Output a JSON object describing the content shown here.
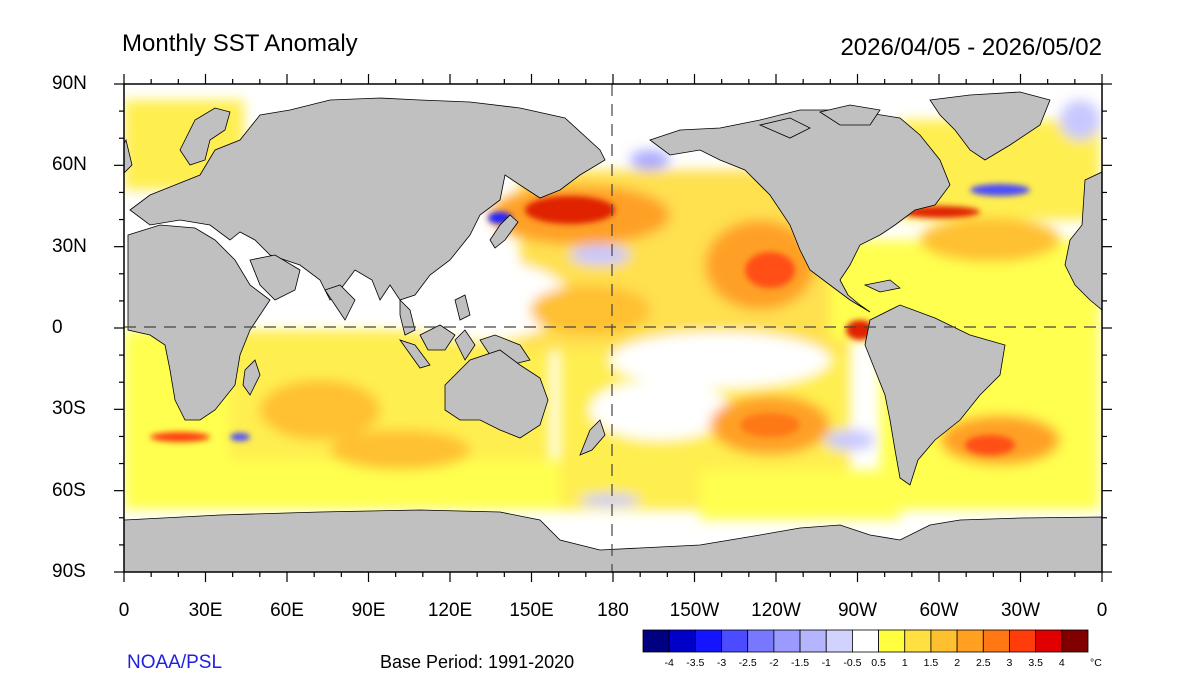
{
  "title": "Monthly SST Anomaly",
  "period": "2026/04/05 - 2026/05/02",
  "credit": "NOAA/PSL",
  "base_period": "Base Period: 1991-2020",
  "lat_labels": [
    "90N",
    "60N",
    "30N",
    "0",
    "30S",
    "60S",
    "90S"
  ],
  "lon_labels": [
    "0",
    "30E",
    "60E",
    "90E",
    "120E",
    "150E",
    "180",
    "150W",
    "120W",
    "90W",
    "60W",
    "30W",
    "0"
  ],
  "colorbar": {
    "unit": "°C",
    "labels": [
      "-4",
      "-3.5",
      "-3",
      "-2.5",
      "-2",
      "-1.5",
      "-1",
      "-0.5",
      "0.5",
      "1",
      "1.5",
      "2",
      "2.5",
      "3",
      "3.5",
      "4"
    ],
    "colors": [
      "#000080",
      "#0000c8",
      "#1414ff",
      "#4b4bff",
      "#7878ff",
      "#9a9aff",
      "#b4b4ff",
      "#d2d2ff",
      "#ffffff",
      "#ffff40",
      "#ffe040",
      "#ffc030",
      "#ffa020",
      "#ff7814",
      "#ff3c0a",
      "#e00000",
      "#800000"
    ]
  },
  "colors": {
    "land": "#c0c0c0",
    "ocean_base": "#ffffff"
  }
}
